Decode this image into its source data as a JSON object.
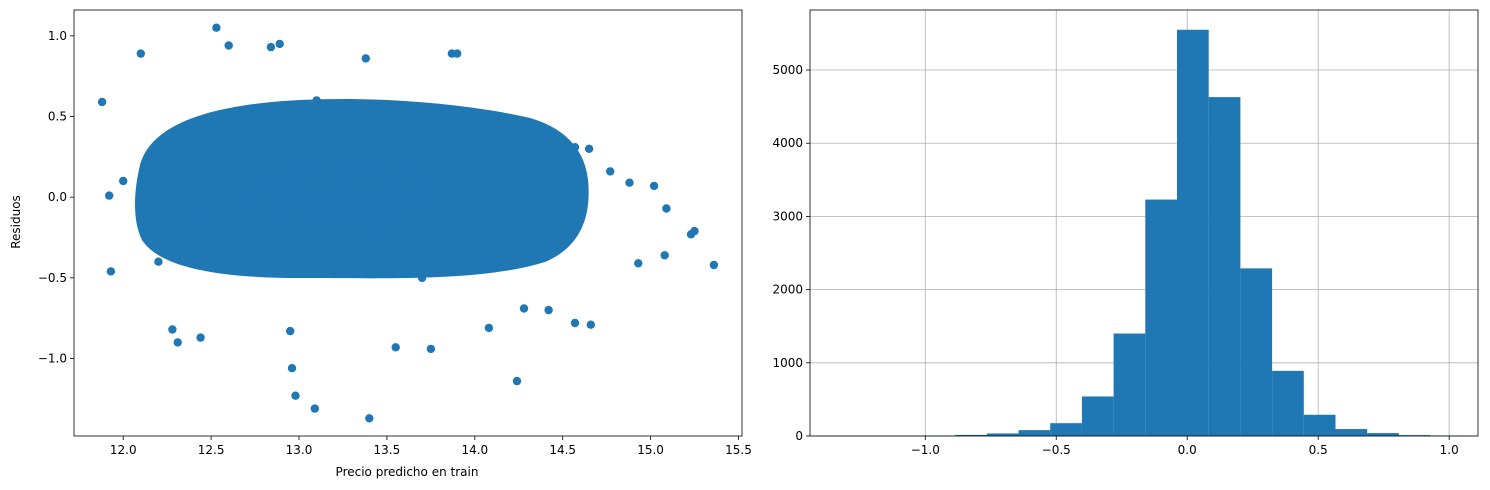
{
  "chart_data": [
    {
      "type": "scatter",
      "title": "",
      "xlabel": "Precio predicho en train",
      "ylabel": "Residuos",
      "xlim": [
        11.72,
        15.52
      ],
      "ylim": [
        -1.48,
        1.16
      ],
      "xticks": [
        12.0,
        12.5,
        13.0,
        13.5,
        14.0,
        14.5,
        15.0,
        15.5
      ],
      "xtick_labels": [
        "12.0",
        "12.5",
        "13.0",
        "13.5",
        "14.0",
        "14.5",
        "15.0",
        "15.5"
      ],
      "yticks": [
        -1.0,
        -0.5,
        0.0,
        0.5,
        1.0
      ],
      "ytick_labels": [
        "−1.0",
        "−0.5",
        "0.0",
        "0.5",
        "1.0"
      ],
      "grid": false,
      "color": "#1f77b4",
      "points": [
        [
          11.88,
          0.59
        ],
        [
          11.92,
          0.01
        ],
        [
          11.93,
          -0.46
        ],
        [
          12.1,
          0.89
        ],
        [
          12.53,
          1.05
        ],
        [
          12.6,
          0.94
        ],
        [
          12.84,
          0.93
        ],
        [
          12.89,
          0.95
        ],
        [
          13.38,
          0.86
        ],
        [
          13.87,
          0.89
        ],
        [
          13.9,
          0.89
        ],
        [
          14.57,
          0.31
        ],
        [
          14.65,
          0.3
        ],
        [
          14.77,
          0.16
        ],
        [
          14.88,
          0.09
        ],
        [
          15.02,
          0.07
        ],
        [
          15.09,
          -0.07
        ],
        [
          15.23,
          -0.23
        ],
        [
          15.25,
          -0.21
        ],
        [
          15.36,
          -0.42
        ],
        [
          15.08,
          -0.36
        ],
        [
          14.93,
          -0.41
        ],
        [
          14.66,
          -0.79
        ],
        [
          14.57,
          -0.78
        ],
        [
          14.24,
          -1.14
        ],
        [
          12.96,
          -1.06
        ],
        [
          12.98,
          -1.23
        ],
        [
          13.09,
          -1.31
        ],
        [
          13.4,
          -1.37
        ],
        [
          13.55,
          -0.93
        ],
        [
          13.75,
          -0.94
        ],
        [
          12.31,
          -0.9
        ],
        [
          12.28,
          -0.82
        ],
        [
          12.44,
          -0.87
        ],
        [
          14.08,
          -0.81
        ],
        [
          14.42,
          -0.7
        ],
        [
          14.28,
          -0.69
        ],
        [
          12.95,
          -0.83
        ],
        [
          13.2,
          0.0
        ],
        [
          13.6,
          0.1
        ],
        [
          12.7,
          -0.2
        ],
        [
          14.0,
          -0.1
        ],
        [
          12.4,
          0.2
        ],
        [
          13.3,
          -0.3
        ],
        [
          13.8,
          0.3
        ],
        [
          12.2,
          -0.4
        ],
        [
          14.3,
          0.2
        ],
        [
          12.0,
          0.1
        ],
        [
          13.1,
          0.6
        ],
        [
          13.7,
          -0.5
        ]
      ]
    },
    {
      "type": "bar",
      "title": "",
      "xlabel": "",
      "ylabel": "",
      "xlim": [
        -1.44,
        1.11
      ],
      "ylim": [
        0,
        5820
      ],
      "xticks": [
        -1.0,
        -0.5,
        0.0,
        0.5,
        1.0
      ],
      "xtick_labels": [
        "−1.0",
        "−0.5",
        "0.0",
        "0.5",
        "1.0"
      ],
      "yticks": [
        0,
        1000,
        2000,
        3000,
        4000,
        5000
      ],
      "ytick_labels": [
        "0",
        "1000",
        "2000",
        "3000",
        "4000",
        "5000"
      ],
      "grid": true,
      "color": "#1f77b4",
      "bin_edges": [
        -1.37,
        -1.249,
        -1.128,
        -1.007,
        -0.886,
        -0.765,
        -0.644,
        -0.523,
        -0.402,
        -0.281,
        -0.16,
        -0.039,
        0.082,
        0.203,
        0.324,
        0.445,
        0.566,
        0.687,
        0.808,
        0.929,
        1.05
      ],
      "values": [
        1,
        1,
        2,
        5,
        15,
        35,
        80,
        175,
        540,
        1400,
        3230,
        5550,
        4630,
        2290,
        890,
        290,
        95,
        40,
        12,
        6
      ]
    }
  ]
}
